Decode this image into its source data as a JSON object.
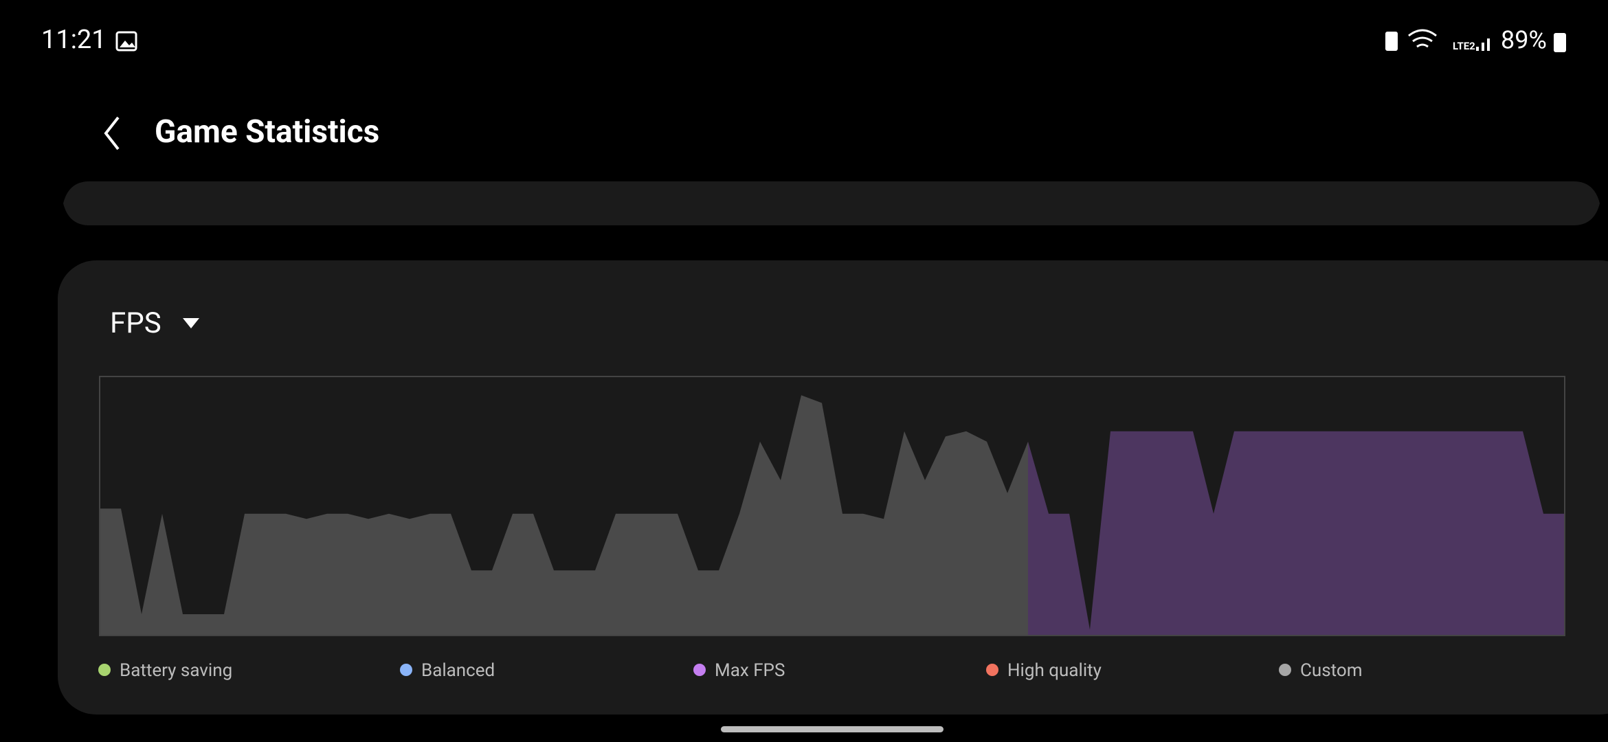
{
  "status_bar": {
    "time": "11:21",
    "network": "LTE2",
    "battery": "89%"
  },
  "header": {
    "title": "Game Statistics"
  },
  "chart_data": {
    "type": "area",
    "title": "FPS",
    "ylim": [
      0,
      100
    ],
    "series": [
      {
        "name": "Battery saving",
        "color": "#a8d46f"
      },
      {
        "name": "Balanced",
        "color": "#8ab4f8"
      },
      {
        "name": "Max FPS",
        "color": "#c47ef0",
        "fill": "#4d3660",
        "values": [
          null,
          null,
          null,
          null,
          null,
          null,
          null,
          null,
          null,
          null,
          null,
          null,
          null,
          null,
          null,
          null,
          null,
          null,
          null,
          null,
          null,
          null,
          null,
          null,
          null,
          null,
          null,
          null,
          null,
          null,
          null,
          null,
          null,
          null,
          null,
          null,
          null,
          null,
          null,
          null,
          null,
          null,
          null,
          null,
          null,
          75,
          47,
          47,
          2,
          79,
          79,
          79,
          79,
          79,
          47,
          79,
          79,
          79,
          79,
          79,
          79,
          79,
          79,
          79,
          79,
          79,
          79,
          79,
          79,
          79,
          47,
          47
        ]
      },
      {
        "name": "High quality",
        "color": "#f2735f"
      },
      {
        "name": "Custom",
        "color": "#a6a6a6",
        "fill": "#4a4a4a",
        "values": [
          49,
          49,
          8,
          47,
          8,
          8,
          8,
          47,
          47,
          47,
          45,
          47,
          47,
          45,
          47,
          45,
          47,
          47,
          25,
          25,
          47,
          47,
          25,
          25,
          25,
          47,
          47,
          47,
          47,
          25,
          25,
          47,
          75,
          60,
          93,
          90,
          47,
          47,
          45,
          79,
          60,
          77,
          79,
          75,
          55,
          75,
          null,
          null,
          null,
          null,
          null,
          null,
          null,
          null,
          null,
          null,
          null,
          null,
          null,
          null,
          null,
          null,
          null,
          null,
          null,
          null,
          null,
          null,
          null,
          null,
          null,
          null
        ]
      }
    ]
  }
}
